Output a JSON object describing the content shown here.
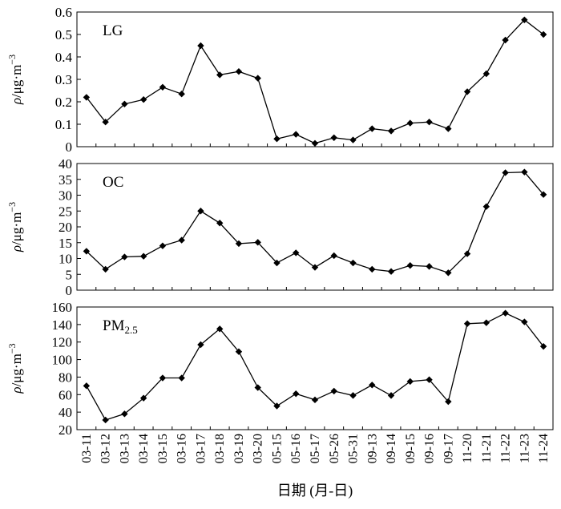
{
  "chart_data": [
    {
      "type": "line",
      "panel_label": "LG",
      "panel_label_sub": "",
      "ylabel": "ρ/μg·m⁻³",
      "ylim": [
        0,
        0.6
      ],
      "yticks": [
        "0",
        "0.1",
        "0.2",
        "0.3",
        "0.4",
        "0.5",
        "0.6"
      ],
      "values": [
        0.22,
        0.11,
        0.19,
        0.21,
        0.265,
        0.235,
        0.45,
        0.32,
        0.335,
        0.305,
        0.035,
        0.055,
        0.015,
        0.04,
        0.03,
        0.08,
        0.07,
        0.105,
        0.11,
        0.08,
        0.245,
        0.325,
        0.475,
        0.565,
        0.5
      ]
    },
    {
      "type": "line",
      "panel_label": "OC",
      "panel_label_sub": "",
      "ylabel": "ρ/μg·m⁻³",
      "ylim": [
        0,
        40
      ],
      "yticks": [
        "0",
        "5",
        "10",
        "15",
        "20",
        "25",
        "30",
        "35",
        "40"
      ],
      "values": [
        12.3,
        6.6,
        10.5,
        10.7,
        14.0,
        15.8,
        25.0,
        21.2,
        14.7,
        15.1,
        8.6,
        11.8,
        7.2,
        10.9,
        8.6,
        6.6,
        5.9,
        7.8,
        7.5,
        5.5,
        11.5,
        26.4,
        37.1,
        37.3,
        30.2
      ]
    },
    {
      "type": "line",
      "panel_label": "PM",
      "panel_label_sub": "2.5",
      "ylabel": "ρ/μg·m⁻³",
      "ylim": [
        20,
        160
      ],
      "yticks": [
        "20",
        "40",
        "60",
        "80",
        "100",
        "120",
        "140",
        "160"
      ],
      "values": [
        70,
        31,
        38,
        56,
        79,
        79,
        117,
        135,
        109,
        68,
        47,
        61,
        54,
        64,
        59,
        71,
        59,
        75,
        77,
        52,
        141,
        142,
        153,
        143,
        115
      ]
    }
  ],
  "categories": [
    "03-11",
    "03-12",
    "03-13",
    "03-14",
    "03-15",
    "03-16",
    "03-17",
    "03-18",
    "03-19",
    "03-20",
    "05-15",
    "05-16",
    "05-17",
    "05-26",
    "05-31",
    "09-13",
    "09-14",
    "09-15",
    "09-16",
    "09-17",
    "11-20",
    "11-21",
    "11-22",
    "11-23",
    "11-24"
  ],
  "xlabel": "日期 (月-日)",
  "ylabel_rho": "ρ",
  "ylabel_unit": "/μg·m",
  "ylabel_exp": "−3"
}
